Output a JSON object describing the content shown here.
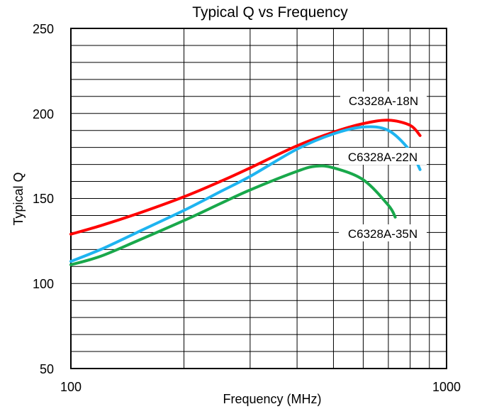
{
  "chart_data": {
    "type": "line",
    "title": "Typical Q vs Frequency",
    "xlabel": "Frequency (MHz)",
    "ylabel": "Typical Q",
    "x_scale": "log",
    "xlim": [
      100,
      1000
    ],
    "ylim": [
      50,
      250
    ],
    "x_ticks": [
      "100",
      "1000"
    ],
    "y_ticks": [
      "50",
      "100",
      "150",
      "200",
      "250"
    ],
    "grid": true,
    "series": [
      {
        "name": "C3328A-18N",
        "color": "#ff0000",
        "x": [
          100,
          120,
          150,
          200,
          250,
          300,
          400,
          500,
          600,
          700,
          800,
          850
        ],
        "y": [
          129,
          134,
          141,
          151,
          160,
          168,
          181,
          189,
          194,
          196,
          193,
          187
        ]
      },
      {
        "name": "C6328A-22N",
        "color": "#1eb4f0",
        "x": [
          100,
          120,
          150,
          200,
          250,
          300,
          400,
          500,
          600,
          700,
          800,
          850
        ],
        "y": [
          113,
          120,
          130,
          143,
          154,
          163,
          179,
          188,
          192,
          190,
          178,
          167
        ]
      },
      {
        "name": "C6328A-35N",
        "color": "#19a84b",
        "x": [
          100,
          120,
          150,
          200,
          250,
          300,
          400,
          450,
          500,
          600,
          700,
          730
        ],
        "y": [
          111,
          116,
          125,
          137,
          147,
          155,
          166,
          169,
          168,
          161,
          146,
          139
        ]
      }
    ]
  }
}
